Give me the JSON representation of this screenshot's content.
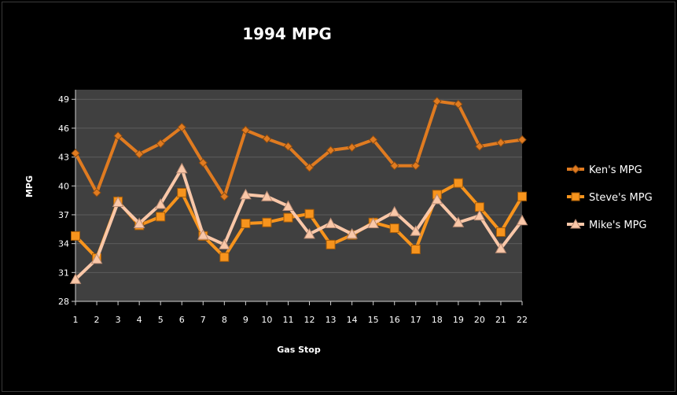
{
  "chart_data": {
    "type": "line",
    "title": "1994 MPG",
    "xlabel": "Gas Stop",
    "ylabel": "MPG",
    "ylim": [
      28,
      50
    ],
    "yticks": [
      28,
      31,
      34,
      37,
      40,
      43,
      46,
      49
    ],
    "x": [
      1,
      2,
      3,
      4,
      5,
      6,
      7,
      8,
      9,
      10,
      11,
      12,
      13,
      14,
      15,
      16,
      17,
      18,
      19,
      20,
      21,
      22
    ],
    "grid": true,
    "legend_position": "right",
    "plot_background": "#404040",
    "series": [
      {
        "name": "Ken's MPG",
        "marker": "diamond",
        "color": "#e07b20",
        "values": [
          43.4,
          39.3,
          45.2,
          43.3,
          44.4,
          46.1,
          42.4,
          38.9,
          45.8,
          44.9,
          44.1,
          41.9,
          43.7,
          44.0,
          44.8,
          42.1,
          42.1,
          48.8,
          48.5,
          44.1,
          44.5,
          44.8
        ]
      },
      {
        "name": "Steve's MPG",
        "marker": "square",
        "color": "#f7941d",
        "values": [
          34.8,
          32.5,
          38.4,
          35.9,
          36.8,
          39.3,
          34.8,
          32.6,
          36.1,
          36.2,
          36.7,
          37.1,
          33.9,
          34.9,
          36.2,
          35.6,
          33.4,
          39.1,
          40.3,
          37.8,
          35.2,
          38.9
        ]
      },
      {
        "name": "Mike's MPG",
        "marker": "triangle",
        "color": "#f9c7a8",
        "values": [
          30.3,
          32.4,
          38.3,
          36.1,
          38.1,
          41.8,
          34.9,
          33.9,
          39.1,
          38.9,
          37.9,
          35.0,
          36.1,
          35.0,
          36.1,
          37.3,
          35.3,
          38.6,
          36.2,
          36.9,
          33.5,
          36.4
        ]
      }
    ]
  }
}
